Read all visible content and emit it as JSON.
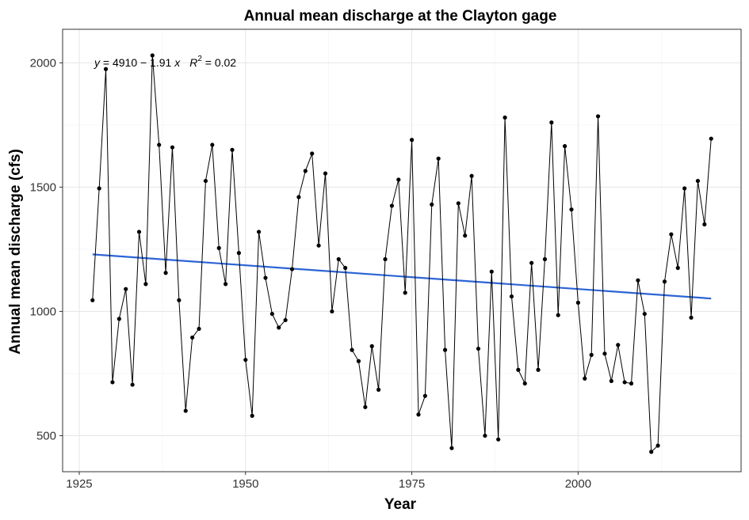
{
  "chart_data": {
    "type": "line",
    "title": "Annual mean discharge at the Clayton gage",
    "xlabel": "Year",
    "ylabel": "Annual mean discharge (cfs)",
    "xlim": [
      1922.5,
      2024.5
    ],
    "ylim": [
      355,
      2135
    ],
    "xticks": [
      1925,
      1950,
      1975,
      2000
    ],
    "yticks": [
      500,
      1000,
      1500,
      2000
    ],
    "grid": true,
    "series": [
      {
        "x": [
          1927,
          1928,
          1929,
          1930,
          1931,
          1932,
          1933,
          1934,
          1935,
          1936,
          1937,
          1938,
          1939,
          1940,
          1941,
          1942,
          1943,
          1944,
          1945,
          1946,
          1947,
          1948,
          1949,
          1950,
          1951,
          1952,
          1953,
          1954,
          1955,
          1956,
          1957,
          1958,
          1959,
          1960,
          1961,
          1962,
          1963,
          1964,
          1965,
          1966,
          1967,
          1968,
          1969,
          1970,
          1971,
          1972,
          1973,
          1974,
          1975,
          1976,
          1977,
          1978,
          1979,
          1980,
          1981,
          1982,
          1983,
          1984,
          1985,
          1986,
          1987,
          1988,
          1989,
          1990,
          1991,
          1992,
          1993,
          1994,
          1995,
          1996,
          1997,
          1998,
          1999,
          2000,
          2001,
          2002,
          2003,
          2004,
          2005,
          2006,
          2007,
          2008,
          2009,
          2010,
          2011,
          2012,
          2013,
          2014,
          2015,
          2016,
          2017,
          2018,
          2019,
          2020
        ],
        "values": [
          1045,
          1495,
          1975,
          715,
          970,
          1090,
          705,
          1320,
          1110,
          2030,
          1670,
          1155,
          1660,
          1045,
          600,
          895,
          930,
          1525,
          1670,
          1255,
          1110,
          1650,
          1235,
          805,
          580,
          1320,
          1135,
          990,
          935,
          965,
          1170,
          1460,
          1565,
          1635,
          1265,
          1555,
          1000,
          1210,
          1175,
          845,
          800,
          615,
          860,
          685,
          1210,
          1425,
          1530,
          1075,
          1690,
          585,
          660,
          1430,
          1615,
          845,
          450,
          1435,
          1305,
          1545,
          850,
          500,
          1160,
          485,
          1780,
          1060,
          765,
          710,
          1195,
          765,
          1210,
          1760,
          985,
          1665,
          1410,
          1035,
          730,
          825,
          1785,
          830,
          720,
          865,
          715,
          710,
          1125,
          990,
          435,
          460,
          1120,
          1310,
          1175,
          1495,
          975,
          1525,
          1350,
          1695
        ],
        "color": "#000000"
      }
    ],
    "trendline": {
      "x_range": [
        1927,
        2020
      ],
      "intercept": 4910,
      "slope": -1.91,
      "color": "#2b64d6"
    },
    "annotation": {
      "y_sym": "y",
      "formula": " = 4910 − 1.91 ",
      "x_sym": "x",
      "r_sym": "R",
      "r_sup": "2",
      "r_value": " = 0.02"
    }
  }
}
